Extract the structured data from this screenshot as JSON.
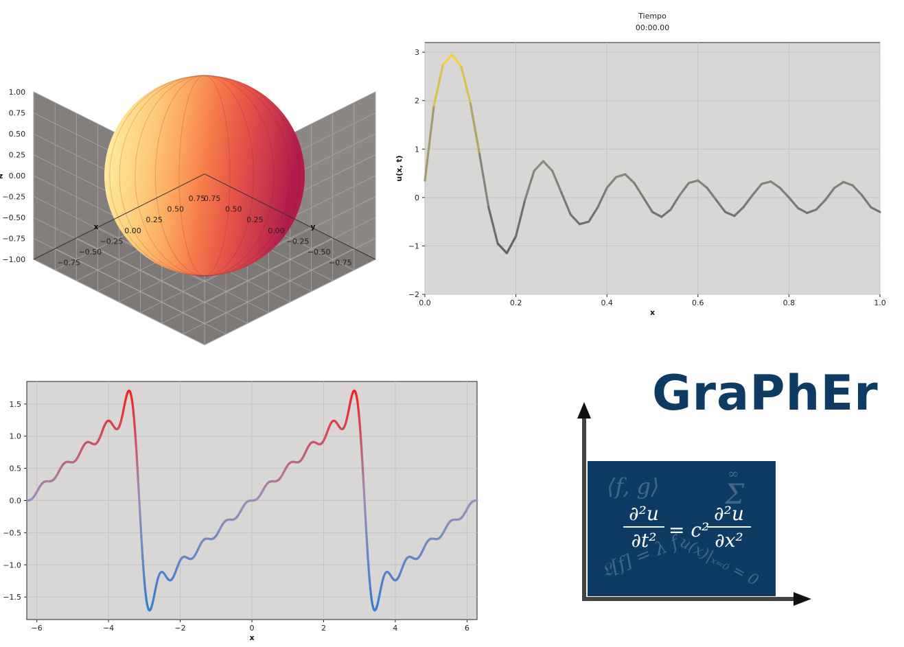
{
  "chart_data": [
    {
      "type": "surface3d",
      "title": "",
      "xlabel": "x",
      "ylabel": "y",
      "zlabel": "z",
      "xlim": [
        -1,
        1
      ],
      "ylim": [
        -1,
        1
      ],
      "zlim": [
        -1,
        1
      ],
      "xticks": [
        "−0.75",
        "−0.50",
        "−0.25",
        "0.00",
        "0.25",
        "0.50",
        "0.75"
      ],
      "yticks": [
        "−0.75",
        "−0.50",
        "−0.25",
        "0.00",
        "0.25",
        "0.50",
        "0.75"
      ],
      "zticks": [
        "1.00",
        "0.75",
        "0.50",
        "0.25",
        "0.00",
        "−0.25",
        "−0.50",
        "−0.75",
        "−1.00"
      ],
      "shape": "sphere",
      "radius": 1,
      "colormap": "Spectral",
      "grid": true,
      "pane_color": "#8a8784"
    },
    {
      "type": "line",
      "title": "Tiempo",
      "subtitle": "00:00.00",
      "xlabel": "x",
      "ylabel": "u(x, t)",
      "xlim": [
        0,
        1
      ],
      "ylim": [
        -2,
        3.2
      ],
      "xticks": [
        "0.0",
        "0.2",
        "0.4",
        "0.6",
        "0.8",
        "1.0"
      ],
      "yticks": [
        "3",
        "2",
        "1",
        "0",
        "−1",
        "−2"
      ],
      "grid": true,
      "background": "#d8d7d6",
      "x": [
        0.0,
        0.02,
        0.04,
        0.06,
        0.08,
        0.1,
        0.12,
        0.14,
        0.16,
        0.18,
        0.2,
        0.22,
        0.24,
        0.26,
        0.28,
        0.3,
        0.32,
        0.34,
        0.36,
        0.38,
        0.4,
        0.42,
        0.44,
        0.46,
        0.48,
        0.5,
        0.52,
        0.54,
        0.56,
        0.58,
        0.6,
        0.62,
        0.64,
        0.66,
        0.68,
        0.7,
        0.72,
        0.74,
        0.76,
        0.78,
        0.8,
        0.82,
        0.84,
        0.86,
        0.88,
        0.9,
        0.92,
        0.94,
        0.96,
        0.98,
        1.0
      ],
      "y": [
        0.35,
        1.9,
        2.75,
        2.95,
        2.7,
        1.95,
        0.9,
        -0.2,
        -0.95,
        -1.15,
        -0.8,
        -0.05,
        0.55,
        0.75,
        0.55,
        0.1,
        -0.35,
        -0.55,
        -0.5,
        -0.2,
        0.2,
        0.42,
        0.48,
        0.3,
        0.0,
        -0.3,
        -0.4,
        -0.25,
        0.05,
        0.3,
        0.35,
        0.2,
        -0.05,
        -0.3,
        -0.38,
        -0.2,
        0.05,
        0.28,
        0.33,
        0.2,
        0.0,
        -0.22,
        -0.32,
        -0.25,
        -0.05,
        0.2,
        0.32,
        0.25,
        0.05,
        -0.2,
        -0.3
      ],
      "color_high": "#f2d43a",
      "color_mid": "#8a8a80",
      "color_low": "#4e5560"
    },
    {
      "type": "line",
      "title": "",
      "xlabel": "x",
      "ylabel": "",
      "xlim": [
        -6.28,
        6.28
      ],
      "ylim": [
        -1.85,
        1.85
      ],
      "xticks": [
        "−6",
        "−4",
        "−2",
        "0",
        "2",
        "4",
        "6"
      ],
      "yticks": [
        "1.5",
        "1.0",
        "0.5",
        "0.0",
        "−0.5",
        "−1.0",
        "−1.5"
      ],
      "grid": true,
      "background": "#d8d7d6",
      "function": "sawtooth_fourier",
      "terms": 10,
      "color_high": "#ee2a2a",
      "color_mid": "#9b8fb8",
      "color_low": "#3a7fd0"
    }
  ],
  "logo": {
    "title": "GraPhEr",
    "equation_lhs_num": "∂²u",
    "equation_lhs_den": "∂t²",
    "equation_mid": "= c²",
    "equation_rhs_num": "∂²u",
    "equation_rhs_den": "∂x²",
    "ghost_1": "⟨f, g⟩",
    "ghost_2": "Σ",
    "ghost_3": "∞",
    "ghost_4": "𝔏[f] = λ f",
    "ghost_5": "u(x)|ₓ₌₀ = 0",
    "box_color": "#0d3b63",
    "axis_color": "#444444"
  }
}
